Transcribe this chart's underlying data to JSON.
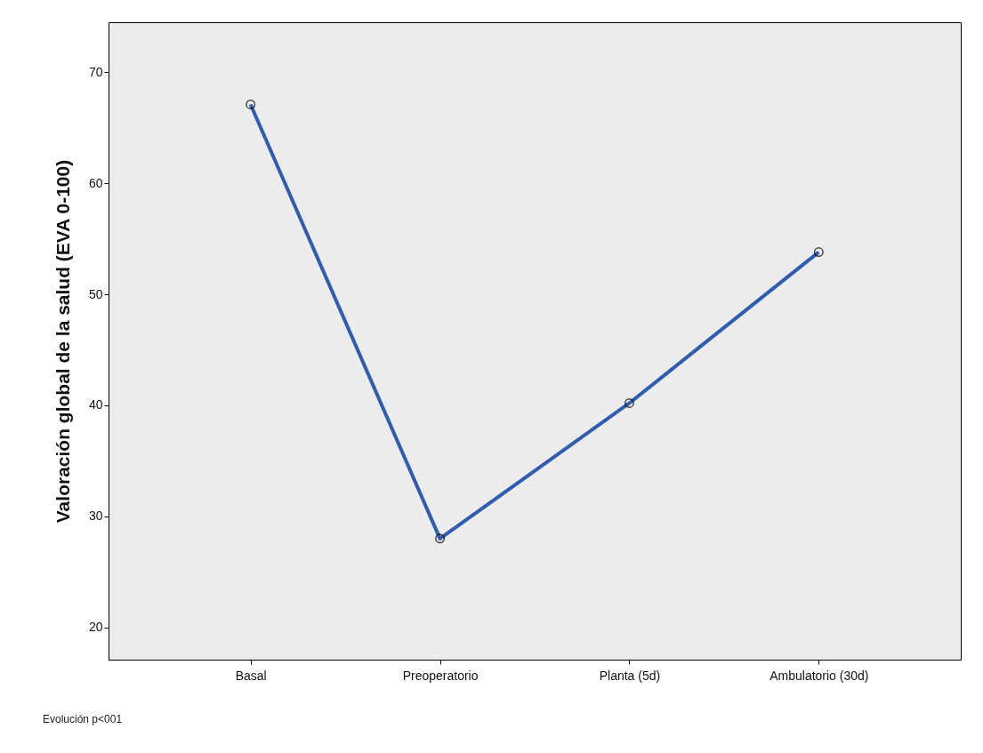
{
  "chart_data": {
    "type": "line",
    "ylabel": "Valoración global de la salud (EVA 0-100)",
    "categories": [
      "Basal",
      "Preoperatorio",
      "Planta (5d)",
      "Ambulatorio (30d)"
    ],
    "series": [
      {
        "color": "#2f5db0",
        "values": [
          67.1,
          28,
          40.2,
          53.8
        ]
      }
    ],
    "ylim": [
      17.1,
      74.5
    ],
    "yticks": [
      20,
      30,
      40,
      50,
      60,
      70
    ],
    "marker": "circle",
    "line_style": "solid",
    "grid": false,
    "legend": false,
    "annotations": [
      "Evolución p<001"
    ]
  }
}
